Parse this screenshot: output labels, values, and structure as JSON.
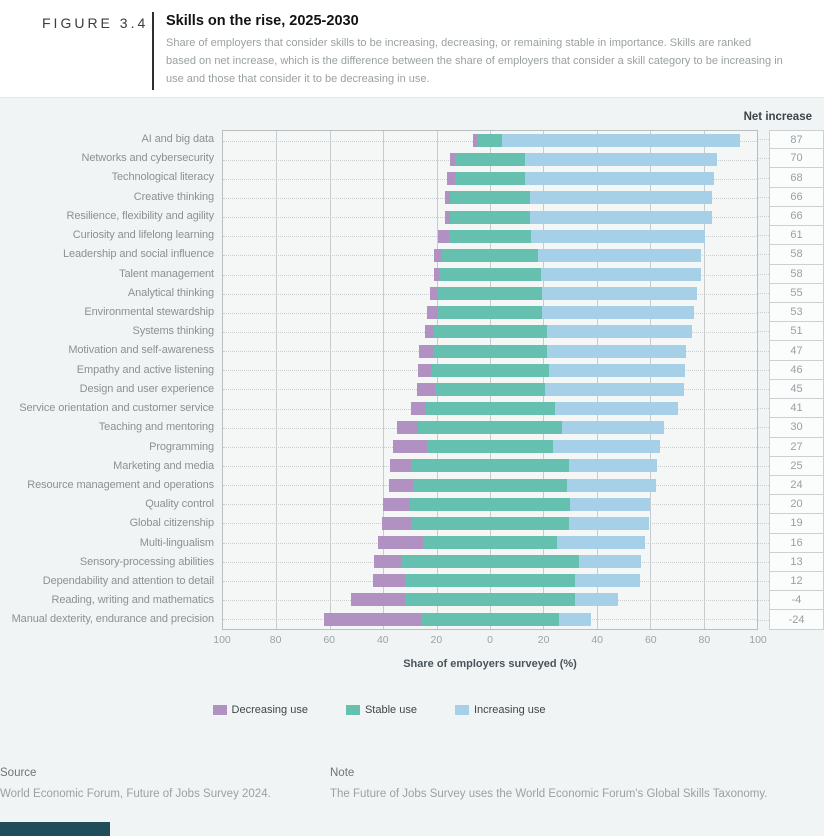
{
  "header": {
    "figure_label": "FIGURE 3.4",
    "title": "Skills on the rise, 2025-2030",
    "subtitle": "Share of employers that consider skills to be increasing, decreasing, or remaining stable in importance. Skills are ranked based on net increase, which is the difference between the share of employers that consider a skill category to be increasing in use and those that consider it to be decreasing in use."
  },
  "chart": {
    "net_header": "Net increase",
    "axis_title": "Share of employers surveyed (%)",
    "tick_labels": [
      "100",
      "80",
      "60",
      "40",
      "20",
      "0",
      "20",
      "40",
      "60",
      "80",
      "100"
    ]
  },
  "chart_data": {
    "type": "bar",
    "orientation": "horizontal-diverging-stacked",
    "layout": "stable segment centered on 0; decreasing use extends left; increasing use extends right; rows sum to 100%",
    "title": "Skills on the rise, 2025-2030",
    "xlabel": "Share of employers surveyed (%)",
    "xlim": [
      -100,
      100
    ],
    "grid": "vertical every 20",
    "legend_position": "bottom",
    "categories": [
      "AI and big data",
      "Networks and cybersecurity",
      "Technological literacy",
      "Creative thinking",
      "Resilience, flexibility and agility",
      "Curiosity and lifelong learning",
      "Leadership and social influence",
      "Talent management",
      "Analytical thinking",
      "Environmental stewardship",
      "Systems thinking",
      "Motivation and self-awareness",
      "Empathy and active listening",
      "Design and user experience",
      "Service orientation and customer service",
      "Teaching and mentoring",
      "Programming",
      "Marketing and media",
      "Resource management and operations",
      "Quality control",
      "Global citizenship",
      "Multi-lingualism",
      "Sensory-processing abilities",
      "Dependability and attention to detail",
      "Reading, writing and mathematics",
      "Manual dexterity, endurance and precision"
    ],
    "series": [
      {
        "name": "Decreasing use",
        "color": "#b190c2",
        "values": [
          2,
          2,
          3,
          2,
          2,
          4,
          3,
          2,
          3,
          4,
          3,
          5,
          5,
          7,
          5,
          8,
          13,
          8,
          9,
          10,
          11,
          17,
          10,
          12,
          20,
          36
        ]
      },
      {
        "name": "Stable use",
        "color": "#66c0af",
        "values": [
          9,
          26,
          26,
          30,
          30,
          31,
          36,
          38,
          39,
          39,
          43,
          43,
          44,
          41,
          49,
          54,
          47,
          59,
          58,
          60,
          59,
          50,
          67,
          64,
          64,
          52
        ]
      },
      {
        "name": "Increasing use",
        "color": "#a6d0e8",
        "values": [
          89,
          72,
          71,
          68,
          68,
          65,
          61,
          60,
          58,
          57,
          54,
          52,
          51,
          52,
          46,
          38,
          40,
          33,
          33,
          30,
          30,
          33,
          23,
          24,
          16,
          12
        ]
      }
    ],
    "net_increase": [
      87,
      70,
      68,
      66,
      66,
      61,
      58,
      58,
      55,
      53,
      51,
      47,
      46,
      45,
      41,
      30,
      27,
      25,
      24,
      20,
      19,
      16,
      13,
      12,
      -4,
      -24
    ]
  },
  "legend": {
    "items": [
      {
        "label": "Decreasing use",
        "color": "#b190c2"
      },
      {
        "label": "Stable use",
        "color": "#66c0af"
      },
      {
        "label": "Increasing use",
        "color": "#a6d0e8"
      }
    ]
  },
  "footer": {
    "source_label": "Source",
    "source_text": "World Economic Forum, Future of Jobs Survey 2024.",
    "note_label": "Note",
    "note_text": "The Future of Jobs Survey uses the World Economic Forum's Global Skills Taxonomy."
  },
  "colors": {
    "page_background": "#f1f4f4",
    "header_background": "#ffffff",
    "plot_background": "#f5f7f7",
    "gridline": "#c6cbcd",
    "plot_border": "#b9bfc1",
    "net_box_border": "#cbd0d2",
    "accent_bar": "#1f4d5a",
    "decreasing": "#b190c2",
    "stable": "#66c0af",
    "increasing": "#a6d0e8"
  }
}
